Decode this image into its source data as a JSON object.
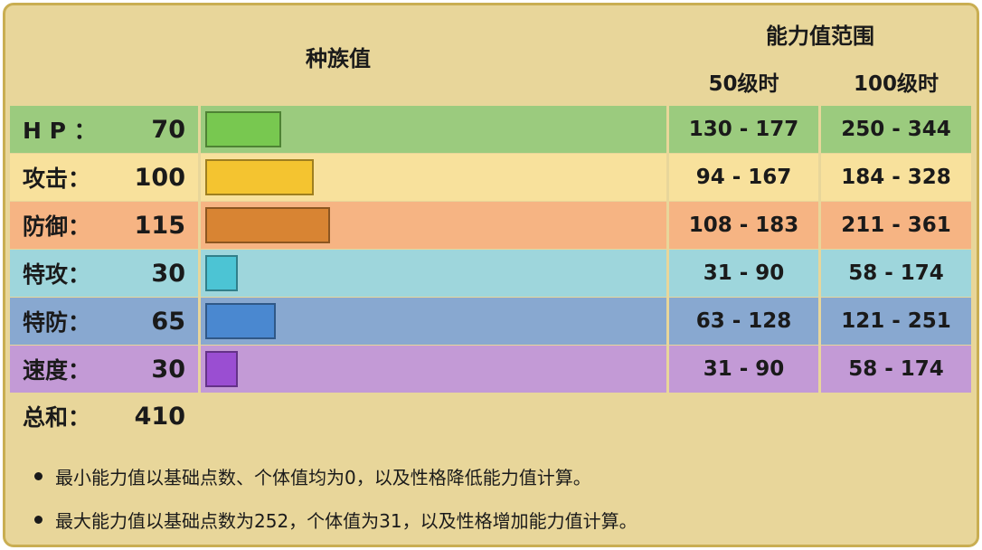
{
  "header": {
    "base_stats": "种族值",
    "stat_range": "能力值范围",
    "level50": "50级时",
    "level100": "100级时"
  },
  "stats": [
    {
      "label": "H P ：",
      "value": 70,
      "range50": "130 - 177",
      "range100": "250 - 344",
      "row_color": "#9bcb7e",
      "bar_color": "#78c850"
    },
    {
      "label": "攻击：",
      "value": 100,
      "range50": "94 - 167",
      "range100": "184 - 328",
      "row_color": "#f8e19c",
      "bar_color": "#f4c430"
    },
    {
      "label": "防御：",
      "value": 115,
      "range50": "108 - 183",
      "range100": "211 - 361",
      "row_color": "#f6b483",
      "bar_color": "#d88433"
    },
    {
      "label": "特攻：",
      "value": 30,
      "range50": "31 - 90",
      "range100": "58 - 174",
      "row_color": "#9ed6dc",
      "bar_color": "#4cc4d4"
    },
    {
      "label": "特防：",
      "value": 65,
      "range50": "63 - 128",
      "range100": "121 - 251",
      "row_color": "#88a8d0",
      "bar_color": "#4a88d0"
    },
    {
      "label": "速度：",
      "value": 30,
      "range50": "31 - 90",
      "range100": "58 - 174",
      "row_color": "#c39ad6",
      "bar_color": "#9a4ed2"
    }
  ],
  "total": {
    "label": "总和：",
    "value": 410
  },
  "notes": [
    "最小能力值以基础点数、个体值均为0，以及性格降低能力值计算。",
    "最大能力值以基础点数为252，个体值为31，以及性格增加能力值计算。"
  ],
  "colors": {
    "frame_bg": "#e8d69a",
    "frame_border": "#c9ae52"
  }
}
